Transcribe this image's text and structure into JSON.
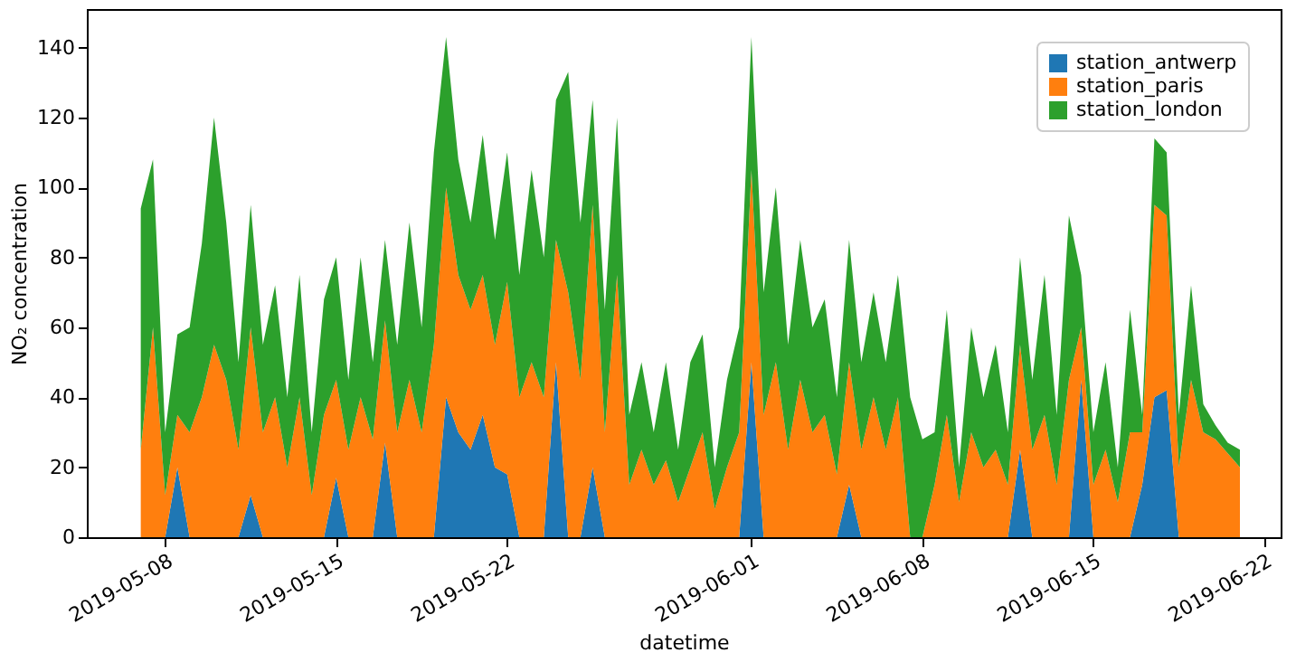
{
  "chart_data": {
    "type": "area",
    "stacked": true,
    "xlabel": "datetime",
    "ylabel": "NO₂ concentration",
    "x": [
      "2019-05-07T00:00",
      "2019-05-07T12:00",
      "2019-05-08T00:00",
      "2019-05-08T12:00",
      "2019-05-09T00:00",
      "2019-05-09T12:00",
      "2019-05-10T00:00",
      "2019-05-10T12:00",
      "2019-05-11T00:00",
      "2019-05-11T12:00",
      "2019-05-12T00:00",
      "2019-05-12T12:00",
      "2019-05-13T00:00",
      "2019-05-13T12:00",
      "2019-05-14T00:00",
      "2019-05-14T12:00",
      "2019-05-15T00:00",
      "2019-05-15T12:00",
      "2019-05-16T00:00",
      "2019-05-16T12:00",
      "2019-05-17T00:00",
      "2019-05-17T12:00",
      "2019-05-18T00:00",
      "2019-05-18T12:00",
      "2019-05-19T00:00",
      "2019-05-19T12:00",
      "2019-05-20T00:00",
      "2019-05-20T12:00",
      "2019-05-21T00:00",
      "2019-05-21T12:00",
      "2019-05-22T00:00",
      "2019-05-22T12:00",
      "2019-05-23T00:00",
      "2019-05-23T12:00",
      "2019-05-24T00:00",
      "2019-05-24T12:00",
      "2019-05-25T00:00",
      "2019-05-25T12:00",
      "2019-05-26T00:00",
      "2019-05-26T12:00",
      "2019-05-27T00:00",
      "2019-05-27T12:00",
      "2019-05-28T00:00",
      "2019-05-28T12:00",
      "2019-05-29T00:00",
      "2019-05-29T12:00",
      "2019-05-30T00:00",
      "2019-05-30T12:00",
      "2019-05-31T00:00",
      "2019-05-31T12:00",
      "2019-06-01T00:00",
      "2019-06-01T12:00",
      "2019-06-02T00:00",
      "2019-06-02T12:00",
      "2019-06-03T00:00",
      "2019-06-03T12:00",
      "2019-06-04T00:00",
      "2019-06-04T12:00",
      "2019-06-05T00:00",
      "2019-06-05T12:00",
      "2019-06-06T00:00",
      "2019-06-06T12:00",
      "2019-06-07T00:00",
      "2019-06-07T12:00",
      "2019-06-08T00:00",
      "2019-06-08T12:00",
      "2019-06-09T00:00",
      "2019-06-09T12:00",
      "2019-06-10T00:00",
      "2019-06-10T12:00",
      "2019-06-11T00:00",
      "2019-06-11T12:00",
      "2019-06-12T00:00",
      "2019-06-12T12:00",
      "2019-06-13T00:00",
      "2019-06-13T12:00",
      "2019-06-14T00:00",
      "2019-06-14T12:00",
      "2019-06-15T00:00",
      "2019-06-15T12:00",
      "2019-06-16T00:00",
      "2019-06-16T12:00",
      "2019-06-17T00:00",
      "2019-06-17T12:00",
      "2019-06-18T00:00",
      "2019-06-18T12:00",
      "2019-06-19T00:00",
      "2019-06-19T12:00",
      "2019-06-20T00:00",
      "2019-06-20T12:00",
      "2019-06-21T00:00"
    ],
    "series": [
      {
        "name": "station_antwerp",
        "color": "#1f77b4",
        "values": [
          0,
          0,
          0,
          20,
          0,
          0,
          0,
          0,
          0,
          12,
          0,
          0,
          0,
          0,
          0,
          0,
          17,
          0,
          0,
          0,
          27,
          0,
          0,
          0,
          0,
          40,
          30,
          25,
          35,
          20,
          18,
          0,
          0,
          0,
          50,
          0,
          0,
          20,
          0,
          0,
          0,
          0,
          0,
          0,
          0,
          0,
          0,
          0,
          0,
          0,
          50,
          0,
          0,
          0,
          0,
          0,
          0,
          0,
          15,
          0,
          0,
          0,
          0,
          0,
          0,
          0,
          0,
          0,
          0,
          0,
          0,
          0,
          25,
          0,
          0,
          0,
          0,
          45,
          0,
          0,
          0,
          0,
          15,
          40,
          42,
          0,
          0,
          0,
          0,
          0,
          0
        ]
      },
      {
        "name": "station_paris",
        "color": "#ff7f0e",
        "values": [
          25,
          60,
          12,
          15,
          30,
          40,
          55,
          45,
          25,
          48,
          30,
          40,
          20,
          40,
          12,
          35,
          28,
          25,
          40,
          28,
          35,
          30,
          45,
          30,
          55,
          60,
          45,
          40,
          40,
          35,
          55,
          40,
          50,
          40,
          35,
          70,
          45,
          75,
          30,
          75,
          15,
          25,
          15,
          22,
          10,
          20,
          30,
          8,
          20,
          30,
          55,
          35,
          50,
          25,
          45,
          30,
          35,
          18,
          35,
          25,
          40,
          25,
          40,
          0,
          0,
          15,
          35,
          10,
          30,
          20,
          25,
          15,
          30,
          25,
          35,
          15,
          45,
          15,
          15,
          25,
          10,
          30,
          15,
          55,
          50,
          20,
          45,
          30,
          28,
          24,
          20
        ]
      },
      {
        "name": "station_london",
        "color": "#2ca02c",
        "values": [
          69,
          48,
          18,
          23,
          30,
          44,
          65,
          45,
          25,
          35,
          25,
          32,
          20,
          35,
          18,
          33,
          35,
          20,
          40,
          22,
          23,
          25,
          45,
          30,
          55,
          43,
          33,
          25,
          40,
          30,
          37,
          35,
          55,
          40,
          40,
          63,
          45,
          30,
          35,
          45,
          20,
          25,
          15,
          28,
          15,
          30,
          28,
          12,
          25,
          30,
          38,
          35,
          50,
          30,
          40,
          30,
          33,
          22,
          35,
          25,
          30,
          25,
          35,
          40,
          28,
          15,
          30,
          10,
          30,
          20,
          30,
          15,
          25,
          20,
          40,
          20,
          47,
          15,
          15,
          25,
          10,
          35,
          5,
          19,
          18,
          15,
          27,
          8,
          4,
          3,
          5
        ]
      }
    ],
    "xlim": [
      "2019-05-04T19:00",
      "2019-06-22T16:00"
    ],
    "xticks": [
      "2019-05-08",
      "2019-05-15",
      "2019-05-22",
      "2019-06-01",
      "2019-06-08",
      "2019-06-15",
      "2019-06-22"
    ],
    "ylim": [
      0,
      151
    ],
    "yticks": [
      0,
      20,
      40,
      60,
      80,
      100,
      120,
      140
    ],
    "grid": false,
    "legend": "top right"
  }
}
